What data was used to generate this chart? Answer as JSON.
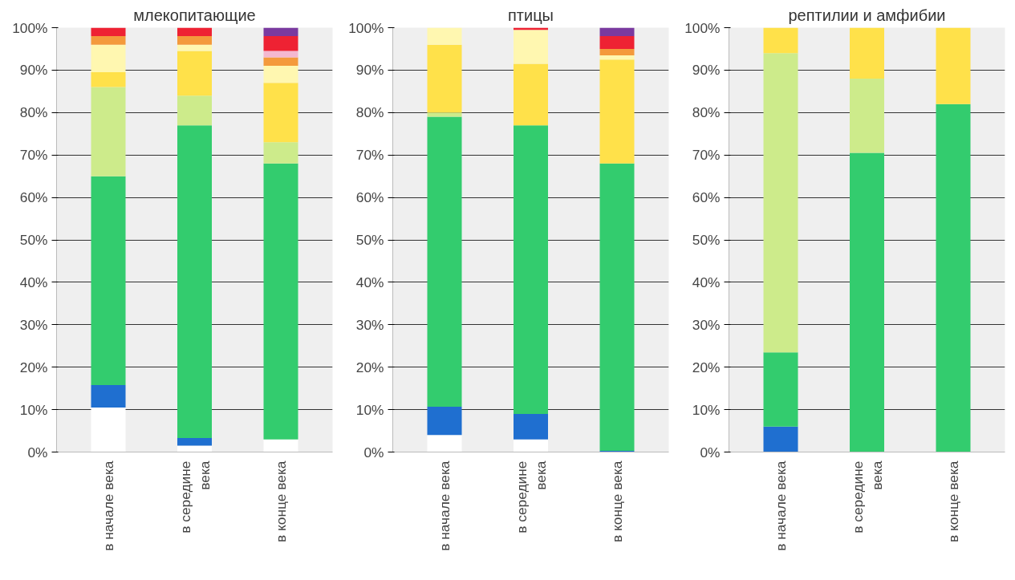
{
  "chart_data": [
    {
      "type": "bar",
      "stacked": true,
      "title": "млекопитающие",
      "categories": [
        "в начале века",
        "в середине\nвека",
        "в конце века"
      ],
      "ylim": [
        0,
        100
      ],
      "yticks": [
        {
          "value": 0,
          "label": "0%"
        },
        {
          "value": 10,
          "label": "10%"
        },
        {
          "value": 20,
          "label": "20%"
        },
        {
          "value": 30,
          "label": "30%"
        },
        {
          "value": 40,
          "label": "40%"
        },
        {
          "value": 50,
          "label": "50%"
        },
        {
          "value": 60,
          "label": "60%"
        },
        {
          "value": 70,
          "label": "70%"
        },
        {
          "value": 80,
          "label": "80%"
        },
        {
          "value": 90,
          "label": "90%"
        },
        {
          "value": 100,
          "label": "100%"
        }
      ],
      "grid": "y",
      "series": [
        {
          "color": "#ffffff",
          "values": [
            10.5,
            1.5,
            3
          ]
        },
        {
          "color": "#1f6fd0",
          "values": [
            5.3,
            1.8,
            null
          ]
        },
        {
          "color": "#33cc6e",
          "values": [
            49.2,
            73.7,
            65
          ]
        },
        {
          "color": "#cdeb8b",
          "values": [
            21,
            7,
            5
          ]
        },
        {
          "color": "#ffe14a",
          "values": [
            3.5,
            10.5,
            14
          ]
        },
        {
          "color": "#fff7b0",
          "values": [
            6.5,
            1.5,
            4
          ]
        },
        {
          "color": "#f49a3c",
          "values": [
            2,
            2,
            2
          ]
        },
        {
          "color": "#f4b8d0",
          "values": [
            null,
            null,
            1.5
          ]
        },
        {
          "color": "#ee2233",
          "values": [
            2,
            2,
            3.5
          ]
        },
        {
          "color": "#7a3aa0",
          "values": [
            null,
            null,
            2
          ]
        }
      ]
    },
    {
      "type": "bar",
      "stacked": true,
      "title": "птицы",
      "categories": [
        "в начале века",
        "в середине\nвека",
        "в конце века"
      ],
      "ylim": [
        0,
        100
      ],
      "yticks": [
        {
          "value": 0,
          "label": "0%"
        },
        {
          "value": 10,
          "label": "10%"
        },
        {
          "value": 20,
          "label": "20%"
        },
        {
          "value": 30,
          "label": "30%"
        },
        {
          "value": 40,
          "label": "40%"
        },
        {
          "value": 50,
          "label": "50%"
        },
        {
          "value": 60,
          "label": "60%"
        },
        {
          "value": 70,
          "label": "70%"
        },
        {
          "value": 80,
          "label": "80%"
        },
        {
          "value": 90,
          "label": "90%"
        },
        {
          "value": 100,
          "label": "100%"
        }
      ],
      "grid": "y",
      "series": [
        {
          "color": "#ffffff",
          "values": [
            4,
            3,
            null
          ]
        },
        {
          "color": "#1f6fd0",
          "values": [
            6.7,
            6,
            0.3
          ]
        },
        {
          "color": "#33cc6e",
          "values": [
            68.3,
            68,
            67.7
          ]
        },
        {
          "color": "#cdeb8b",
          "values": [
            1,
            null,
            null
          ]
        },
        {
          "color": "#ffe14a",
          "values": [
            16,
            14.5,
            24.5
          ]
        },
        {
          "color": "#fff7b0",
          "values": [
            4,
            8,
            1
          ]
        },
        {
          "color": "#f49a3c",
          "values": [
            null,
            null,
            1.5
          ]
        },
        {
          "color": "#ee2233",
          "values": [
            null,
            0.5,
            3
          ]
        },
        {
          "color": "#7a3aa0",
          "values": [
            null,
            null,
            2
          ]
        }
      ]
    },
    {
      "type": "bar",
      "stacked": true,
      "title": "рептилии и амфибии",
      "categories": [
        "в начале века",
        "в середине\nвека",
        "в конце века"
      ],
      "ylim": [
        0,
        100
      ],
      "yticks": [
        {
          "value": 0,
          "label": "0%"
        },
        {
          "value": 10,
          "label": "10%"
        },
        {
          "value": 20,
          "label": "20%"
        },
        {
          "value": 30,
          "label": "30%"
        },
        {
          "value": 40,
          "label": "40%"
        },
        {
          "value": 50,
          "label": "50%"
        },
        {
          "value": 60,
          "label": "60%"
        },
        {
          "value": 70,
          "label": "70%"
        },
        {
          "value": 80,
          "label": "80%"
        },
        {
          "value": 90,
          "label": "90%"
        },
        {
          "value": 100,
          "label": "100%"
        }
      ],
      "grid": "y",
      "series": [
        {
          "color": "#1f6fd0",
          "values": [
            6,
            null,
            null
          ]
        },
        {
          "color": "#33cc6e",
          "values": [
            17.5,
            70.5,
            82
          ]
        },
        {
          "color": "#cdeb8b",
          "values": [
            70.5,
            17.5,
            null
          ]
        },
        {
          "color": "#ffe14a",
          "values": [
            6,
            12,
            18
          ]
        }
      ]
    }
  ]
}
